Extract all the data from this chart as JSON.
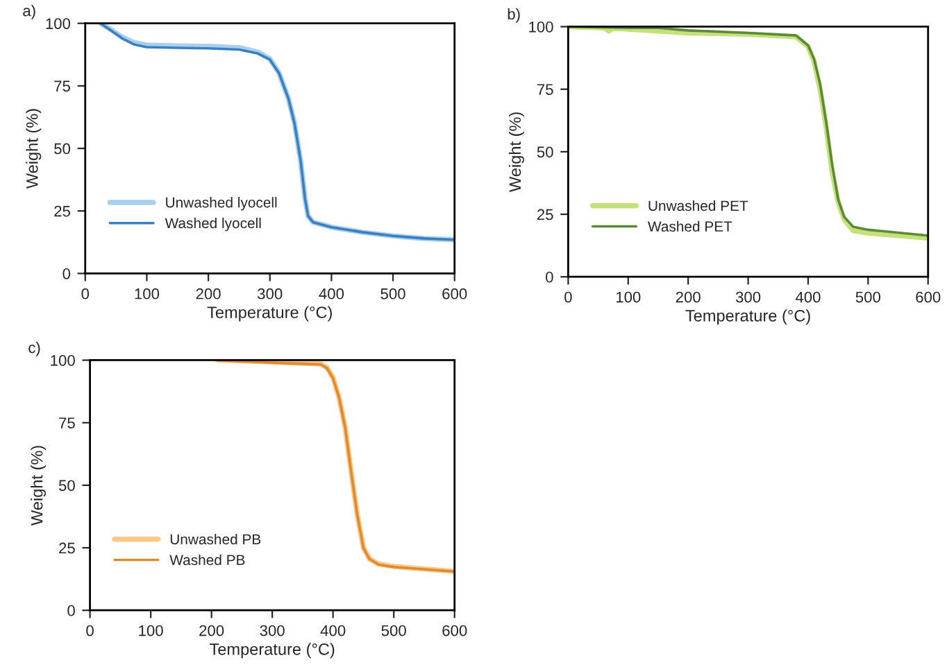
{
  "chart_data": [
    {
      "type": "line",
      "title": "a)",
      "xlabel": "Temperature (°C)",
      "ylabel": "Weight (%)",
      "xlim": [
        0,
        600
      ],
      "ylim": [
        0,
        100
      ],
      "xticks": [
        0,
        100,
        200,
        300,
        400,
        500,
        600
      ],
      "yticks": [
        0,
        25,
        50,
        75,
        100
      ],
      "grid": false,
      "legend": "bottom left",
      "marker": "none",
      "line_style": "solid",
      "series": [
        {
          "name": "Unwashed lyocell",
          "color": "#a8d0ee",
          "x": [
            25,
            40,
            60,
            80,
            100,
            150,
            200,
            250,
            280,
            300,
            315,
            330,
            340,
            350,
            357,
            362,
            370,
            400,
            450,
            500,
            550,
            600
          ],
          "values": [
            100,
            97.8,
            94.5,
            92.2,
            91.3,
            91,
            90.8,
            90.3,
            88.5,
            85.8,
            80,
            70,
            60,
            45,
            30,
            23,
            20.5,
            18.5,
            16.5,
            15,
            14,
            13.5
          ]
        },
        {
          "name": "Washed lyocell",
          "color": "#3a7fc0",
          "x": [
            25,
            40,
            60,
            80,
            100,
            150,
            200,
            250,
            280,
            300,
            315,
            330,
            340,
            350,
            357,
            362,
            370,
            400,
            450,
            500,
            550,
            600
          ],
          "values": [
            100,
            97.5,
            94,
            91.5,
            90.5,
            90.2,
            90,
            89.5,
            88,
            85.5,
            80,
            70,
            60,
            45,
            30,
            23,
            20.5,
            18.5,
            16.5,
            15,
            14,
            13.5
          ]
        }
      ]
    },
    {
      "type": "line",
      "title": "b)",
      "xlabel": "Temperature (°C)",
      "ylabel": "Weight (%)",
      "xlim": [
        0,
        600
      ],
      "ylim": [
        0,
        100
      ],
      "xticks": [
        0,
        100,
        200,
        300,
        400,
        500,
        600
      ],
      "yticks": [
        0,
        25,
        50,
        75,
        100
      ],
      "grid": false,
      "legend": "bottom left",
      "marker": "none",
      "line_style": "solid",
      "series": [
        {
          "name": "Unwashed PET",
          "color": "#c5e17a",
          "x": [
            0,
            60,
            68,
            75,
            100,
            200,
            300,
            380,
            400,
            410,
            420,
            430,
            440,
            450,
            460,
            475,
            500,
            600
          ],
          "values": [
            100,
            99.5,
            98.3,
            99.3,
            99,
            97.5,
            97,
            96,
            92,
            86,
            75,
            60,
            42,
            30,
            23,
            18.5,
            17.5,
            15.5
          ]
        },
        {
          "name": "Washed PET",
          "color": "#5a8a3a",
          "x": [
            0,
            100,
            150,
            200,
            300,
            380,
            400,
            410,
            420,
            430,
            440,
            450,
            460,
            475,
            500,
            600
          ],
          "values": [
            100,
            99.5,
            99.5,
            98.5,
            97.5,
            96.5,
            92.5,
            87,
            77,
            62,
            45,
            31,
            24,
            20,
            18.8,
            16.5
          ]
        }
      ]
    },
    {
      "type": "line",
      "title": "c)",
      "xlabel": "Temperature (°C)",
      "ylabel": "Weight (%)",
      "xlim": [
        0,
        600
      ],
      "ylim": [
        0,
        100
      ],
      "xticks": [
        0,
        100,
        200,
        300,
        400,
        500,
        600
      ],
      "yticks": [
        0,
        25,
        50,
        75,
        100
      ],
      "grid": false,
      "legend": "bottom left",
      "marker": "none",
      "line_style": "solid",
      "series": [
        {
          "name": "Unwashed PB",
          "color": "#f8c98a",
          "x": [
            210,
            300,
            380,
            390,
            400,
            410,
            420,
            430,
            440,
            450,
            460,
            475,
            500,
            600
          ],
          "values": [
            100,
            99.3,
            98.5,
            97,
            93,
            85,
            73,
            55,
            38,
            25,
            20.5,
            18.5,
            17.5,
            15.5
          ]
        },
        {
          "name": "Washed PB",
          "color": "#e08a30",
          "x": [
            210,
            300,
            380,
            390,
            400,
            410,
            420,
            430,
            440,
            450,
            460,
            475,
            500,
            600
          ],
          "values": [
            100,
            99,
            98.3,
            96.8,
            92.8,
            85,
            73,
            55,
            38,
            25,
            20.5,
            18.3,
            17.3,
            15.5
          ]
        }
      ]
    }
  ]
}
